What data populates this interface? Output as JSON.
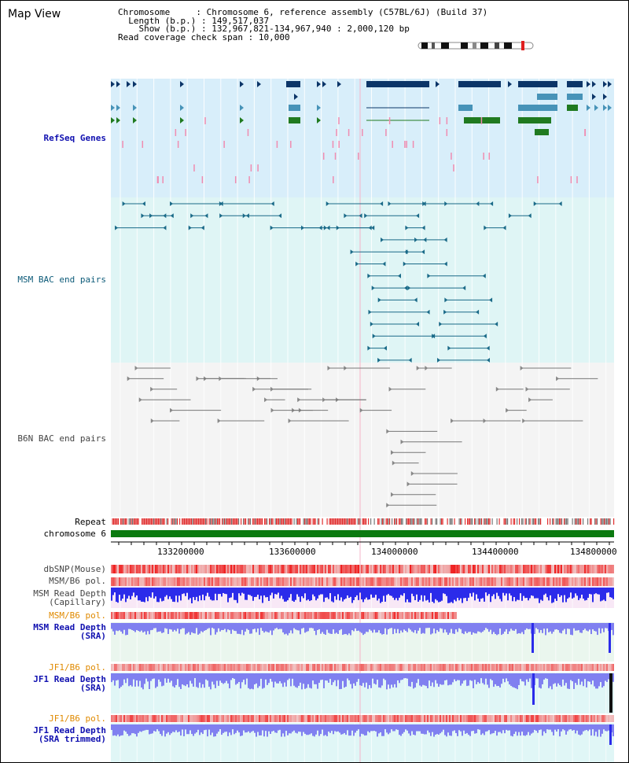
{
  "header": {
    "title": "Map View",
    "chromosome_label": "Chromosome",
    "chromosome_value": "Chromosome 6, reference assembly (C57BL/6J) (Build 37)",
    "length_label": "Length (b.p.)",
    "length_value": "149,517,037",
    "show_label": "Show (b.p.)",
    "show_value": "132,967,821-134,967,940 : 2,000,120 bp",
    "coverage_label": "Read coverage check span",
    "coverage_value": "10,000"
  },
  "tracks": {
    "refseq": "RefSeq Genes",
    "msm_bac": "MSM BAC end pairs",
    "b6n_bac": "B6N BAC end pairs",
    "repeat": "Repeat",
    "chromosome": "chromosome 6",
    "dbsnp": "dbSNP(Mouse)",
    "msm_b6_pol_1": "MSM/B6 pol.",
    "msm_read_depth_cap": "MSM Read Depth\n(Capillary)",
    "msm_b6_pol_2": "MSM/B6 pol.",
    "msm_read_depth_sra": "MSM Read Depth\n(SRA)",
    "jf1_b6_pol_1": "JF1/B6 pol.",
    "jf1_read_depth_sra": "JF1 Read Depth\n(SRA)",
    "jf1_b6_pol_2": "JF1/B6 pol.",
    "jf1_read_depth_trim": "JF1 Read Depth\n(SRA trimmed)"
  },
  "axis": {
    "ticks": [
      "133200000",
      "133600000",
      "134000000",
      "134400000",
      "134800000"
    ]
  },
  "colors": {
    "refseq_bg": "#d8eefa",
    "msm_bg": "#dff5f5",
    "b6n_bg": "#f4f4f4",
    "gene_navy": "#0c3568",
    "gene_blue": "#4793b8",
    "gene_green": "#207a20",
    "pink": "#f08cb0",
    "teal_line": "#1a6a88",
    "gray_line": "#777777",
    "repeat_red": "#e03030",
    "chrom_green": "#0b7a10",
    "depth_blue": "#2b2bea",
    "depth_light": "#8080f0",
    "pol_red": "#f04040"
  }
}
